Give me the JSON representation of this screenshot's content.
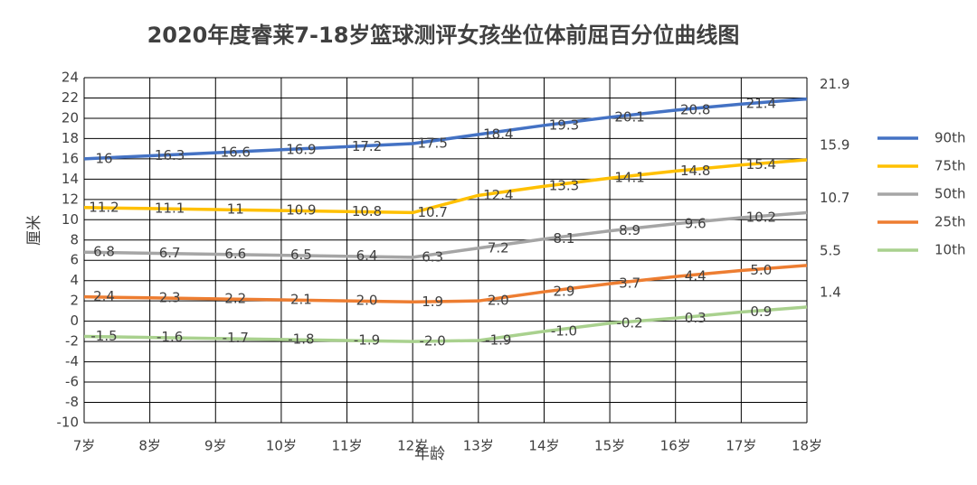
{
  "chart_data": {
    "type": "line",
    "title": "2020年度睿莱7-18岁篮球测评女孩坐位体前屈百分位曲线图",
    "x_label": "年龄",
    "y_label": "厘米",
    "categories": [
      "7岁",
      "8岁",
      "9岁",
      "10岁",
      "11岁",
      "12岁",
      "13岁",
      "14岁",
      "15岁",
      "16岁",
      "17岁",
      "18岁"
    ],
    "series": [
      {
        "name": "90th",
        "color": "#4472c4",
        "values": [
          16,
          16.3,
          16.6,
          16.9,
          17.2,
          17.5,
          18.4,
          19.3,
          20.1,
          20.8,
          21.4,
          21.9
        ]
      },
      {
        "name": "75th",
        "color": "#ffc000",
        "values": [
          11.2,
          11.1,
          11,
          10.9,
          10.8,
          10.7,
          12.4,
          13.3,
          14.1,
          14.8,
          15.4,
          15.9
        ]
      },
      {
        "name": "50th",
        "color": "#a5a5a5",
        "values": [
          6.8,
          6.7,
          6.6,
          6.5,
          6.4,
          6.3,
          7.2,
          8.1,
          8.9,
          9.6,
          10.2,
          10.7
        ]
      },
      {
        "name": "25th",
        "color": "#ed7d31",
        "values": [
          2.4,
          2.3,
          2.2,
          2.1,
          2.0,
          1.9,
          2.0,
          2.9,
          3.7,
          4.4,
          5.0,
          5.5
        ],
        "value_labels": [
          "2.4",
          "2.3",
          "2.2",
          "2.1",
          "2.0",
          "1.9",
          "2.0",
          "2.9",
          "3.7",
          "4.4",
          "5.0",
          "5.5"
        ]
      },
      {
        "name": "10th",
        "color": "#a9d18e",
        "values": [
          -1.5,
          -1.6,
          -1.7,
          -1.8,
          -1.9,
          -2.0,
          -1.9,
          -1.0,
          -0.2,
          0.3,
          0.9,
          1.4
        ],
        "value_labels": [
          "-1.5",
          "-1.6",
          "-1.7",
          "-1.8",
          "-1.9",
          "-2.0",
          "-1.9",
          "-1.0",
          "-0.2",
          "0.3",
          "0.9",
          "1.4"
        ]
      }
    ],
    "ylim": [
      -10,
      24
    ],
    "yticks": [
      -10,
      -8,
      -6,
      -4,
      -2,
      0,
      2,
      4,
      6,
      8,
      10,
      12,
      14,
      16,
      18,
      20,
      22,
      24
    ],
    "grid": true,
    "legend": "right"
  }
}
